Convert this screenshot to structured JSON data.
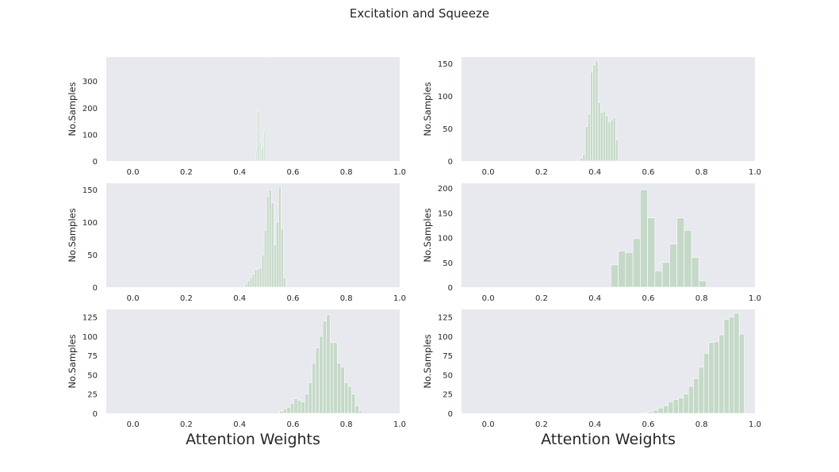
{
  "figure": {
    "title": "Excitation and Squeeze",
    "colors": {
      "panel_bg": "#e8e8ef",
      "bar": "#c5d9c8",
      "bar_edge": "#ffffff",
      "text": "#262626"
    }
  },
  "chart_data": [
    {
      "type": "bar",
      "ylabel": "No.Samples",
      "xlabel": "",
      "xlim": [
        -0.1,
        1.0
      ],
      "ylim": [
        0,
        390
      ],
      "xticks": [
        "0.0",
        "0.2",
        "0.4",
        "0.6",
        "0.8",
        "1.0"
      ],
      "yticks": [
        0,
        100,
        200,
        300
      ],
      "bin_width": 0.005,
      "bin_starts": [
        0.46,
        0.465,
        0.47,
        0.475,
        0.48,
        0.485,
        0.49,
        0.495,
        0.5
      ],
      "values": [
        40,
        190,
        185,
        75,
        50,
        60,
        110,
        370,
        5
      ]
    },
    {
      "type": "bar",
      "ylabel": "No.Samples",
      "xlabel": "",
      "xlim": [
        -0.1,
        1.0
      ],
      "ylim": [
        0,
        160
      ],
      "xticks": [
        "0.0",
        "0.2",
        "0.4",
        "0.6",
        "0.8",
        "1.0"
      ],
      "yticks": [
        0,
        50,
        100,
        150
      ],
      "bin_width": 0.0095,
      "bin_starts": [
        0.345,
        0.3545,
        0.364,
        0.3735,
        0.383,
        0.3925,
        0.402,
        0.4115,
        0.421,
        0.4305,
        0.44,
        0.4495,
        0.459,
        0.4685,
        0.478,
        0.4875
      ],
      "values": [
        5,
        10,
        53,
        72,
        137,
        148,
        154,
        90,
        75,
        77,
        70,
        60,
        63,
        67,
        33,
        0
      ]
    },
    {
      "type": "bar",
      "ylabel": "No.Samples",
      "xlabel": "",
      "xlim": [
        -0.1,
        1.0
      ],
      "ylim": [
        0,
        160
      ],
      "xticks": [
        "0.0",
        "0.2",
        "0.4",
        "0.6",
        "0.8",
        "1.0"
      ],
      "yticks": [
        0,
        50,
        100,
        150
      ],
      "bin_width": 0.009,
      "bin_starts": [
        0.42,
        0.429,
        0.438,
        0.447,
        0.456,
        0.465,
        0.474,
        0.483,
        0.492,
        0.501,
        0.51,
        0.519,
        0.528,
        0.537,
        0.546,
        0.555,
        0.564,
        0.573
      ],
      "values": [
        5,
        10,
        15,
        20,
        27,
        28,
        30,
        50,
        88,
        140,
        150,
        130,
        65,
        100,
        155,
        90,
        15,
        0
      ]
    },
    {
      "type": "bar",
      "ylabel": "No.Samples",
      "xlabel": "",
      "xlim": [
        -0.1,
        1.0
      ],
      "ylim": [
        0,
        210
      ],
      "xticks": [
        "0.0",
        "0.2",
        "0.4",
        "0.6",
        "0.8",
        "1.0"
      ],
      "yticks": [
        0,
        50,
        100,
        150,
        200
      ],
      "bin_width": 0.0275,
      "bin_starts": [
        0.46,
        0.4875,
        0.515,
        0.5425,
        0.57,
        0.5975,
        0.625,
        0.6525,
        0.68,
        0.7075,
        0.735,
        0.7625,
        0.79
      ],
      "values": [
        45,
        73,
        70,
        98,
        197,
        140,
        33,
        50,
        87,
        140,
        115,
        60,
        13
      ]
    },
    {
      "type": "bar",
      "ylabel": "No.Samples",
      "xlabel": "Attention Weights",
      "xlim": [
        -0.1,
        1.0
      ],
      "ylim": [
        0,
        135
      ],
      "xticks": [
        "0.0",
        "0.2",
        "0.4",
        "0.6",
        "0.8",
        "1.0"
      ],
      "yticks": [
        0,
        25,
        50,
        75,
        100,
        125
      ],
      "bin_width": 0.0135,
      "bin_starts": [
        0.55,
        0.5635,
        0.577,
        0.5905,
        0.604,
        0.6175,
        0.631,
        0.6445,
        0.658,
        0.6715,
        0.685,
        0.6985,
        0.712,
        0.7255,
        0.739,
        0.7525,
        0.766,
        0.7795,
        0.793,
        0.8065,
        0.82,
        0.8335,
        0.847,
        0.8605
      ],
      "values": [
        3,
        6,
        8,
        13,
        19,
        17,
        15,
        25,
        40,
        65,
        85,
        100,
        120,
        128,
        92,
        92,
        65,
        60,
        40,
        35,
        25,
        10,
        3,
        0
      ]
    },
    {
      "type": "bar",
      "ylabel": "No.Samples",
      "xlabel": "Attention Weights",
      "xlim": [
        -0.1,
        1.0
      ],
      "ylim": [
        0,
        135
      ],
      "xticks": [
        "0.0",
        "0.2",
        "0.4",
        "0.6",
        "0.8",
        "1.0"
      ],
      "yticks": [
        0,
        25,
        50,
        75,
        100,
        125
      ],
      "bin_width": 0.019,
      "bin_starts": [
        0.58,
        0.599,
        0.618,
        0.637,
        0.656,
        0.675,
        0.694,
        0.713,
        0.732,
        0.751,
        0.77,
        0.789,
        0.808,
        0.827,
        0.846,
        0.865,
        0.884,
        0.903,
        0.922,
        0.941
      ],
      "values": [
        1,
        2,
        4,
        7,
        10,
        15,
        18,
        20,
        25,
        35,
        45,
        60,
        78,
        92,
        93,
        102,
        122,
        125,
        130,
        103
      ]
    }
  ]
}
